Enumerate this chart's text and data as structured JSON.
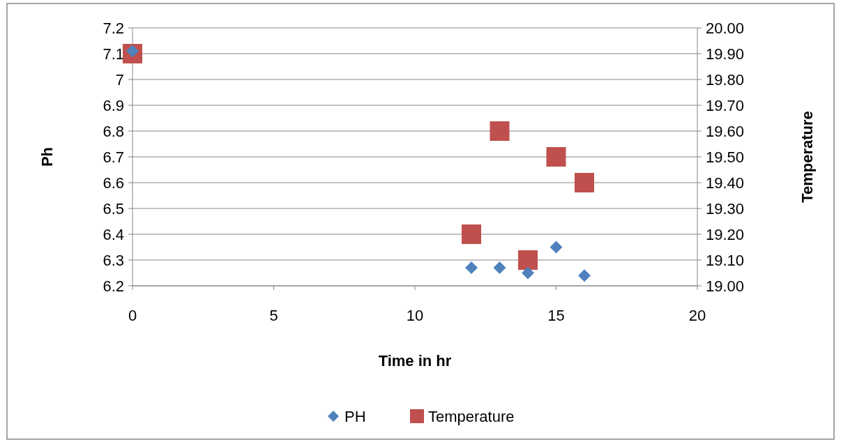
{
  "chart_data": {
    "type": "scatter",
    "xlabel": "Time in hr",
    "ylabel": "Ph",
    "y2label": "Temperature",
    "xlim": [
      0,
      20
    ],
    "xticks": [
      0,
      5,
      10,
      15,
      20
    ],
    "ylim": [
      6.2,
      7.2
    ],
    "yticks": [
      6.2,
      6.3,
      6.4,
      6.5,
      6.6,
      6.7,
      6.8,
      6.9,
      7,
      7.1,
      7.2
    ],
    "y2lim": [
      19,
      20
    ],
    "y2ticks": [
      {
        "value": 19,
        "label": "19.00"
      },
      {
        "value": 19.1,
        "label": "19.10"
      },
      {
        "value": 19.2,
        "label": "19.20"
      },
      {
        "value": 19.3,
        "label": "19.30"
      },
      {
        "value": 19.4,
        "label": "19.40"
      },
      {
        "value": 19.5,
        "label": "19.50"
      },
      {
        "value": 19.6,
        "label": "19.60"
      },
      {
        "value": 19.7,
        "label": "19.70"
      },
      {
        "value": 19.8,
        "label": "19.80"
      },
      {
        "value": 19.9,
        "label": "19.90"
      },
      {
        "value": 20,
        "label": "20.00"
      }
    ],
    "grid": "y",
    "legend": "bottom",
    "series": [
      {
        "name": "PH",
        "color": "#4f81bd",
        "marker": "diamond",
        "x": [
          0,
          12,
          13,
          14,
          15,
          16
        ],
        "values": [
          7.11,
          6.27,
          6.27,
          6.25,
          6.35,
          6.24
        ]
      },
      {
        "name": "Temperature",
        "color": "#c0504d",
        "marker": "square",
        "axis": "y2",
        "x": [
          0,
          12,
          13,
          14,
          15,
          16
        ],
        "values": [
          19.9,
          19.2,
          19.6,
          19.1,
          19.5,
          19.4
        ]
      }
    ]
  }
}
